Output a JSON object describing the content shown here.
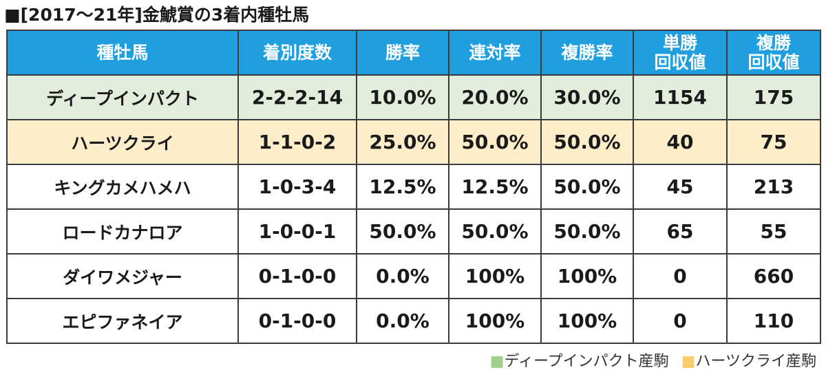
{
  "title": "■[2017～21年]金鯱賞の3着内種牡馬",
  "colors": {
    "header_bg": "#1f9fe0",
    "header_text": "#ffffff",
    "deep_bg": "#e2eedb",
    "hearts_bg": "#fdeec9",
    "plain_bg": "#ffffff",
    "deep_swatch": "#9fd18c",
    "hearts_swatch": "#f7cd6c"
  },
  "chart_data": {
    "type": "table",
    "columns": [
      [
        "種牡馬"
      ],
      [
        "着別度数"
      ],
      [
        "勝率"
      ],
      [
        "連対率"
      ],
      [
        "複勝率"
      ],
      [
        "単勝",
        "回収値"
      ],
      [
        "複勝",
        "回収値"
      ]
    ],
    "rows": [
      {
        "highlight": "deep",
        "cells": [
          "ディープインパクト",
          "2-2-2-14",
          "10.0%",
          "20.0%",
          "30.0%",
          "1154",
          "175"
        ]
      },
      {
        "highlight": "hearts",
        "cells": [
          "ハーツクライ",
          "1-1-0-2",
          "25.0%",
          "50.0%",
          "50.0%",
          "40",
          "75"
        ]
      },
      {
        "highlight": "none",
        "cells": [
          "キングカメハメハ",
          "1-0-3-4",
          "12.5%",
          "12.5%",
          "50.0%",
          "45",
          "213"
        ]
      },
      {
        "highlight": "none",
        "cells": [
          "ロードカナロア",
          "1-0-0-1",
          "50.0%",
          "50.0%",
          "50.0%",
          "65",
          "55"
        ]
      },
      {
        "highlight": "none",
        "cells": [
          "ダイワメジャー",
          "0-1-0-0",
          "0.0%",
          "100%",
          "100%",
          "0",
          "660"
        ]
      },
      {
        "highlight": "none",
        "cells": [
          "エピファネイア",
          "0-1-0-0",
          "0.0%",
          "100%",
          "100%",
          "0",
          "110"
        ]
      }
    ],
    "legend": [
      {
        "key": "deep",
        "swatch": "■",
        "label": "ディープインパクト産駒"
      },
      {
        "key": "hearts",
        "swatch": "■",
        "label": "ハーツクライ産駒"
      }
    ]
  }
}
